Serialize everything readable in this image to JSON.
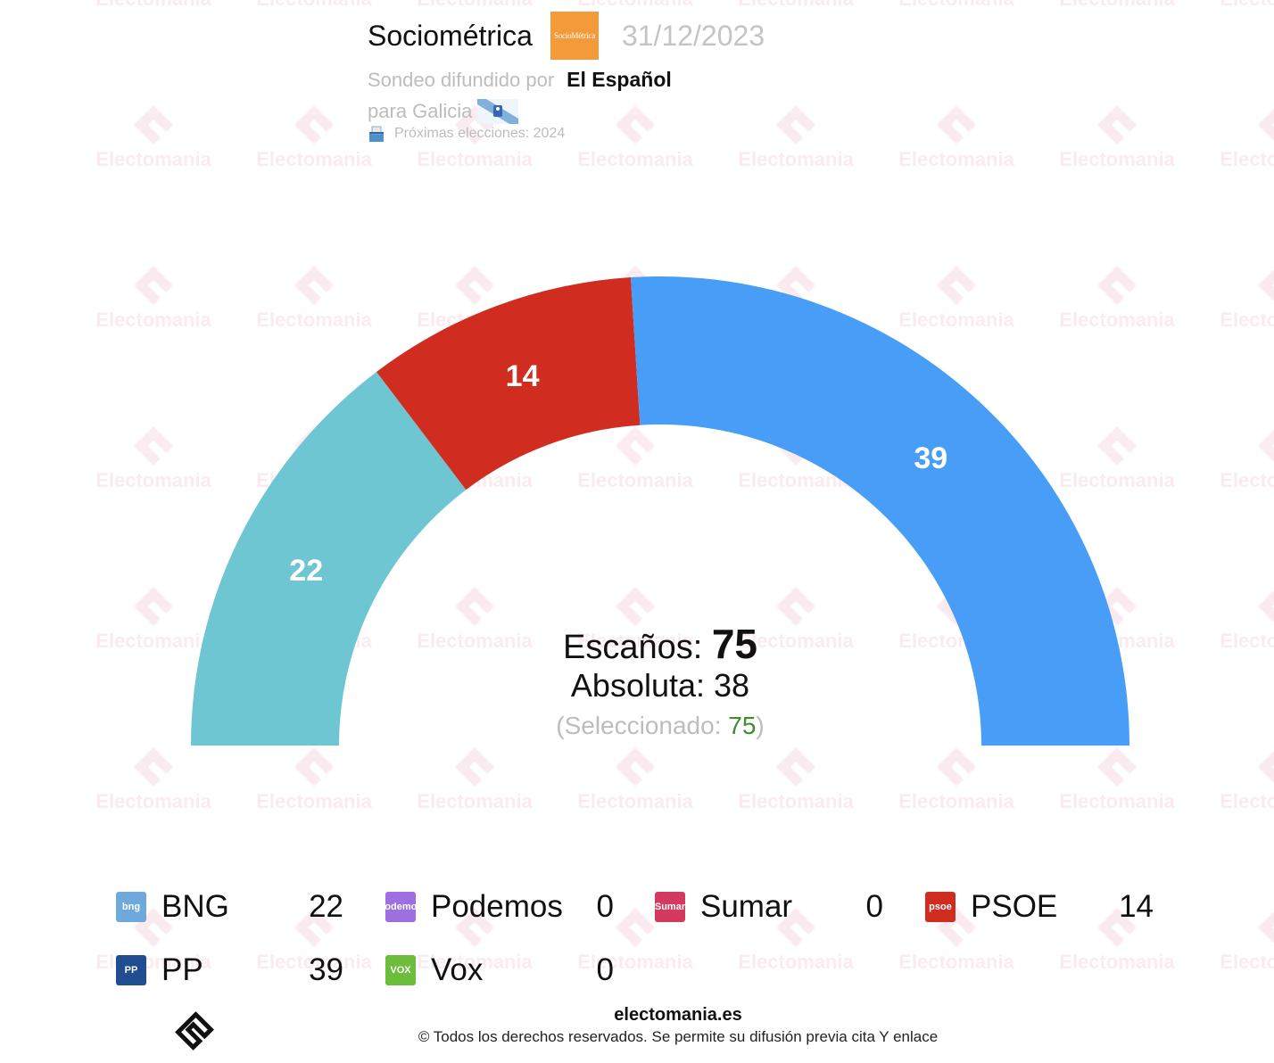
{
  "header": {
    "pollster": "Sociométrica",
    "pollster_logo_text": "SocioMétrica",
    "date": "31/12/2023",
    "published_by_label": "Sondeo difundido por",
    "media": "El Español",
    "region": "para Galicia",
    "next_elections": "Próximas elecciones: 2024"
  },
  "center": {
    "seats_label": "Escaños:",
    "seats_total": "75",
    "majority_label": "Absoluta: 38",
    "selected_prefix": "(Seleccionado: ",
    "selected_value": "75",
    "selected_suffix": ")"
  },
  "watermark_text": "Electomania",
  "chart_data": {
    "type": "pie",
    "total_seats": 75,
    "majority": 38,
    "series": [
      {
        "name": "BNG",
        "value": 22,
        "color": "#6fc6d3"
      },
      {
        "name": "PSOE",
        "value": 14,
        "color": "#d02d20"
      },
      {
        "name": "PP",
        "value": 39,
        "color": "#489ef6"
      }
    ]
  },
  "legend": [
    {
      "name": "BNG",
      "value": "22",
      "logo": "bng",
      "logo_color": "#6fa9dc"
    },
    {
      "name": "Podemos",
      "value": "0",
      "logo": "podemos",
      "logo_color": "#9d6fe0"
    },
    {
      "name": "Sumar",
      "value": "0",
      "logo": "Sumar",
      "logo_color": "#d43a5d"
    },
    {
      "name": "PSOE",
      "value": "14",
      "logo": "psoe",
      "logo_color": "#d02d20"
    },
    {
      "name": "PP",
      "value": "39",
      "logo": "PP",
      "logo_color": "#1f4d90"
    },
    {
      "name": "Vox",
      "value": "0",
      "logo": "VOX",
      "logo_color": "#6cbd3b"
    }
  ],
  "footer": {
    "site": "electomania.es",
    "copyright": "© Todos los derechos reservados. Se permite su difusión previa cita Y enlace"
  }
}
